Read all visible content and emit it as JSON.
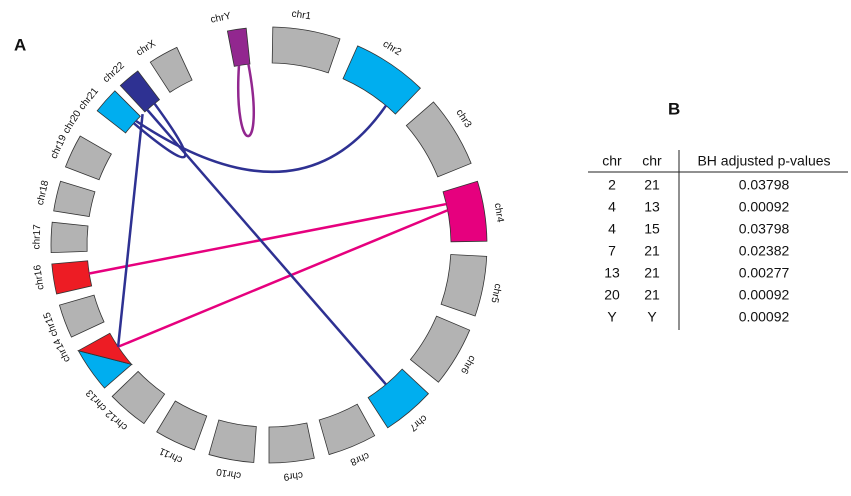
{
  "panel_a": {
    "label": "A",
    "chromosomes": [
      "chr1",
      "chr2",
      "chr3",
      "chr4",
      "chr5",
      "chr6",
      "chr7",
      "chr8",
      "chr9",
      "chr10",
      "chr11",
      "chr12",
      "chr13",
      "chr14",
      "chr15",
      "chr16",
      "chr17",
      "chr18",
      "chr19",
      "chr20",
      "chr21",
      "chr22",
      "chrX",
      "chrY"
    ]
  },
  "panel_b": {
    "label": "B",
    "table": {
      "header": [
        "chr",
        "chr",
        "BH adjusted p-values"
      ],
      "rows": [
        [
          "2",
          "21",
          "0.03798"
        ],
        [
          "4",
          "13",
          "0.00092"
        ],
        [
          "4",
          "15",
          "0.03798"
        ],
        [
          "7",
          "21",
          "0.02382"
        ],
        [
          "13",
          "21",
          "0.00277"
        ],
        [
          "20",
          "21",
          "0.00092"
        ],
        [
          "Y",
          "Y",
          "0.00092"
        ]
      ]
    }
  }
}
